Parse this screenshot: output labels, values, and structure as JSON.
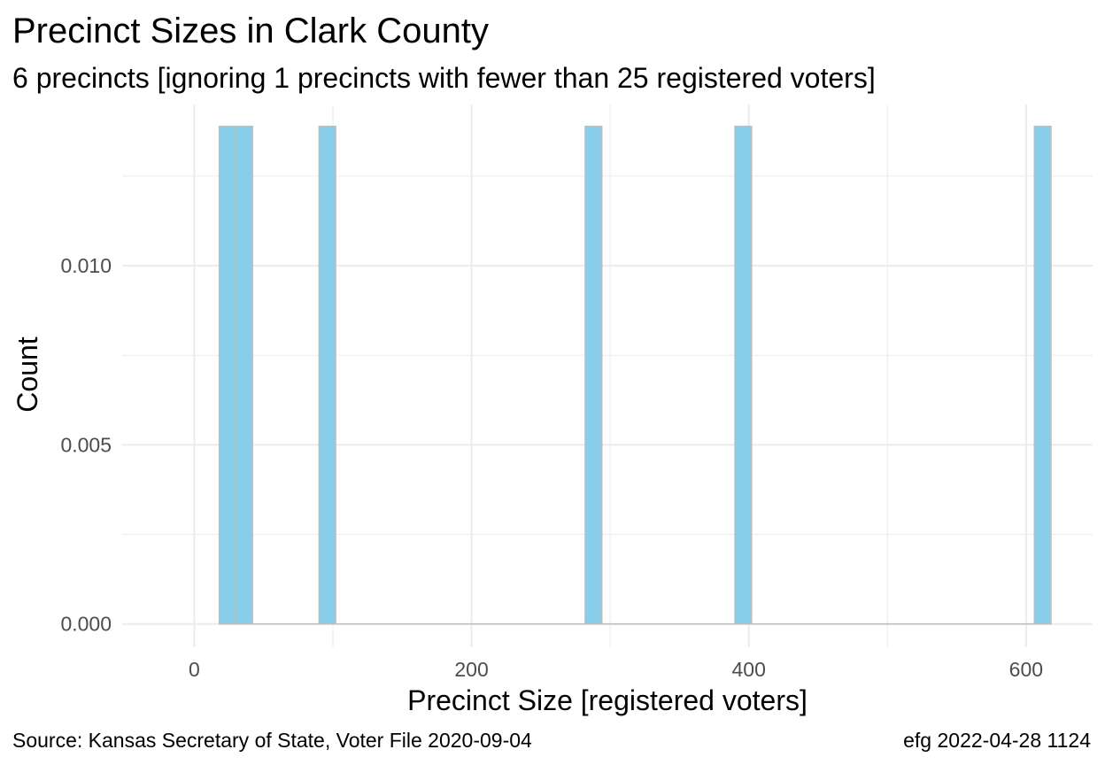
{
  "chart_data": {
    "type": "bar",
    "title": "Precinct Sizes in Clark County",
    "subtitle": "6 precincts [ignoring 1 precincts with fewer than 25 registered voters]",
    "xlabel": "Precinct Size [registered voters]",
    "ylabel": "Count",
    "xlim": [
      -52,
      648
    ],
    "ylim": [
      -0.00065,
      0.0145
    ],
    "x_ticks": [
      0,
      200,
      400,
      600
    ],
    "x_tick_labels": [
      "0",
      "200",
      "400",
      "600"
    ],
    "y_ticks": [
      0,
      0.005,
      0.01
    ],
    "y_tick_labels": [
      "0.000",
      "0.005",
      "0.010"
    ],
    "x_minor_ticks": [
      100,
      300,
      500
    ],
    "y_minor_ticks": [
      0.0025,
      0.0075,
      0.0125
    ],
    "bin_width": 12,
    "bars": [
      {
        "x": 24,
        "value": 0.01389
      },
      {
        "x": 36,
        "value": 0.01389
      },
      {
        "x": 96,
        "value": 0.01389
      },
      {
        "x": 288,
        "value": 0.01389
      },
      {
        "x": 396,
        "value": 0.01389
      },
      {
        "x": 612,
        "value": 0.01389
      }
    ],
    "bar_fill": "#87ceeb",
    "bar_stroke": "#bebebe",
    "grid": true,
    "grid_color": "#ebebeb",
    "legend": "none"
  },
  "caption": {
    "source": "Source:  Kansas Secretary of State, Voter File  2020-09-04",
    "stamp": "efg 2022-04-28 1124"
  }
}
